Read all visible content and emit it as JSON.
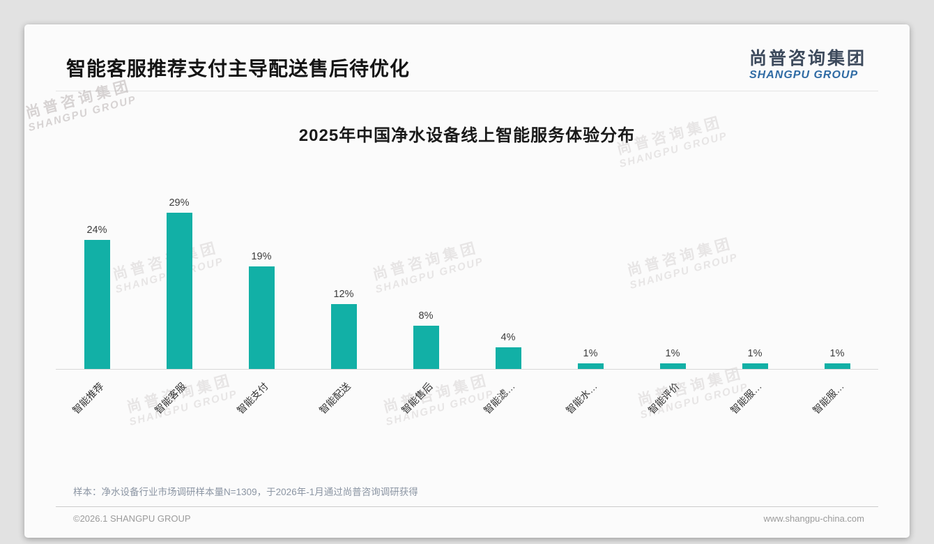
{
  "page": {
    "title": "智能客服推荐支付主导配送售后待优化",
    "logo": {
      "cn": "尚普咨询集团",
      "en": "SHANGPU GROUP"
    },
    "watermark": {
      "line1": "尚普咨询集团",
      "line2": "SHANGPU GROUP"
    },
    "footnote": "样本：净水设备行业市场调研样本量N=1309，于2026年-1月通过尚普咨询调研获得",
    "footer": {
      "copyright": "©2026.1 SHANGPU GROUP",
      "website": "www.shangpu-china.com"
    }
  },
  "chart_data": {
    "type": "bar",
    "title": "2025年中国净水设备线上智能服务体验分布",
    "categories": [
      "智能推荐",
      "智能客服",
      "智能支付",
      "智能配送",
      "智能售后",
      "智能滤…",
      "智能水…",
      "智能评价",
      "智能服…",
      "智能服…"
    ],
    "values": [
      24,
      29,
      19,
      12,
      8,
      4,
      1,
      1,
      1,
      1
    ],
    "unit": "%",
    "bar_color": "#12b0a6",
    "value_label_color": "#3c3c3c",
    "xlabel": "",
    "ylabel": "",
    "ylim": [
      0,
      32
    ],
    "grid": false,
    "legend": null,
    "value_labels_position": "above bars",
    "x_tick_rotation": 45
  }
}
